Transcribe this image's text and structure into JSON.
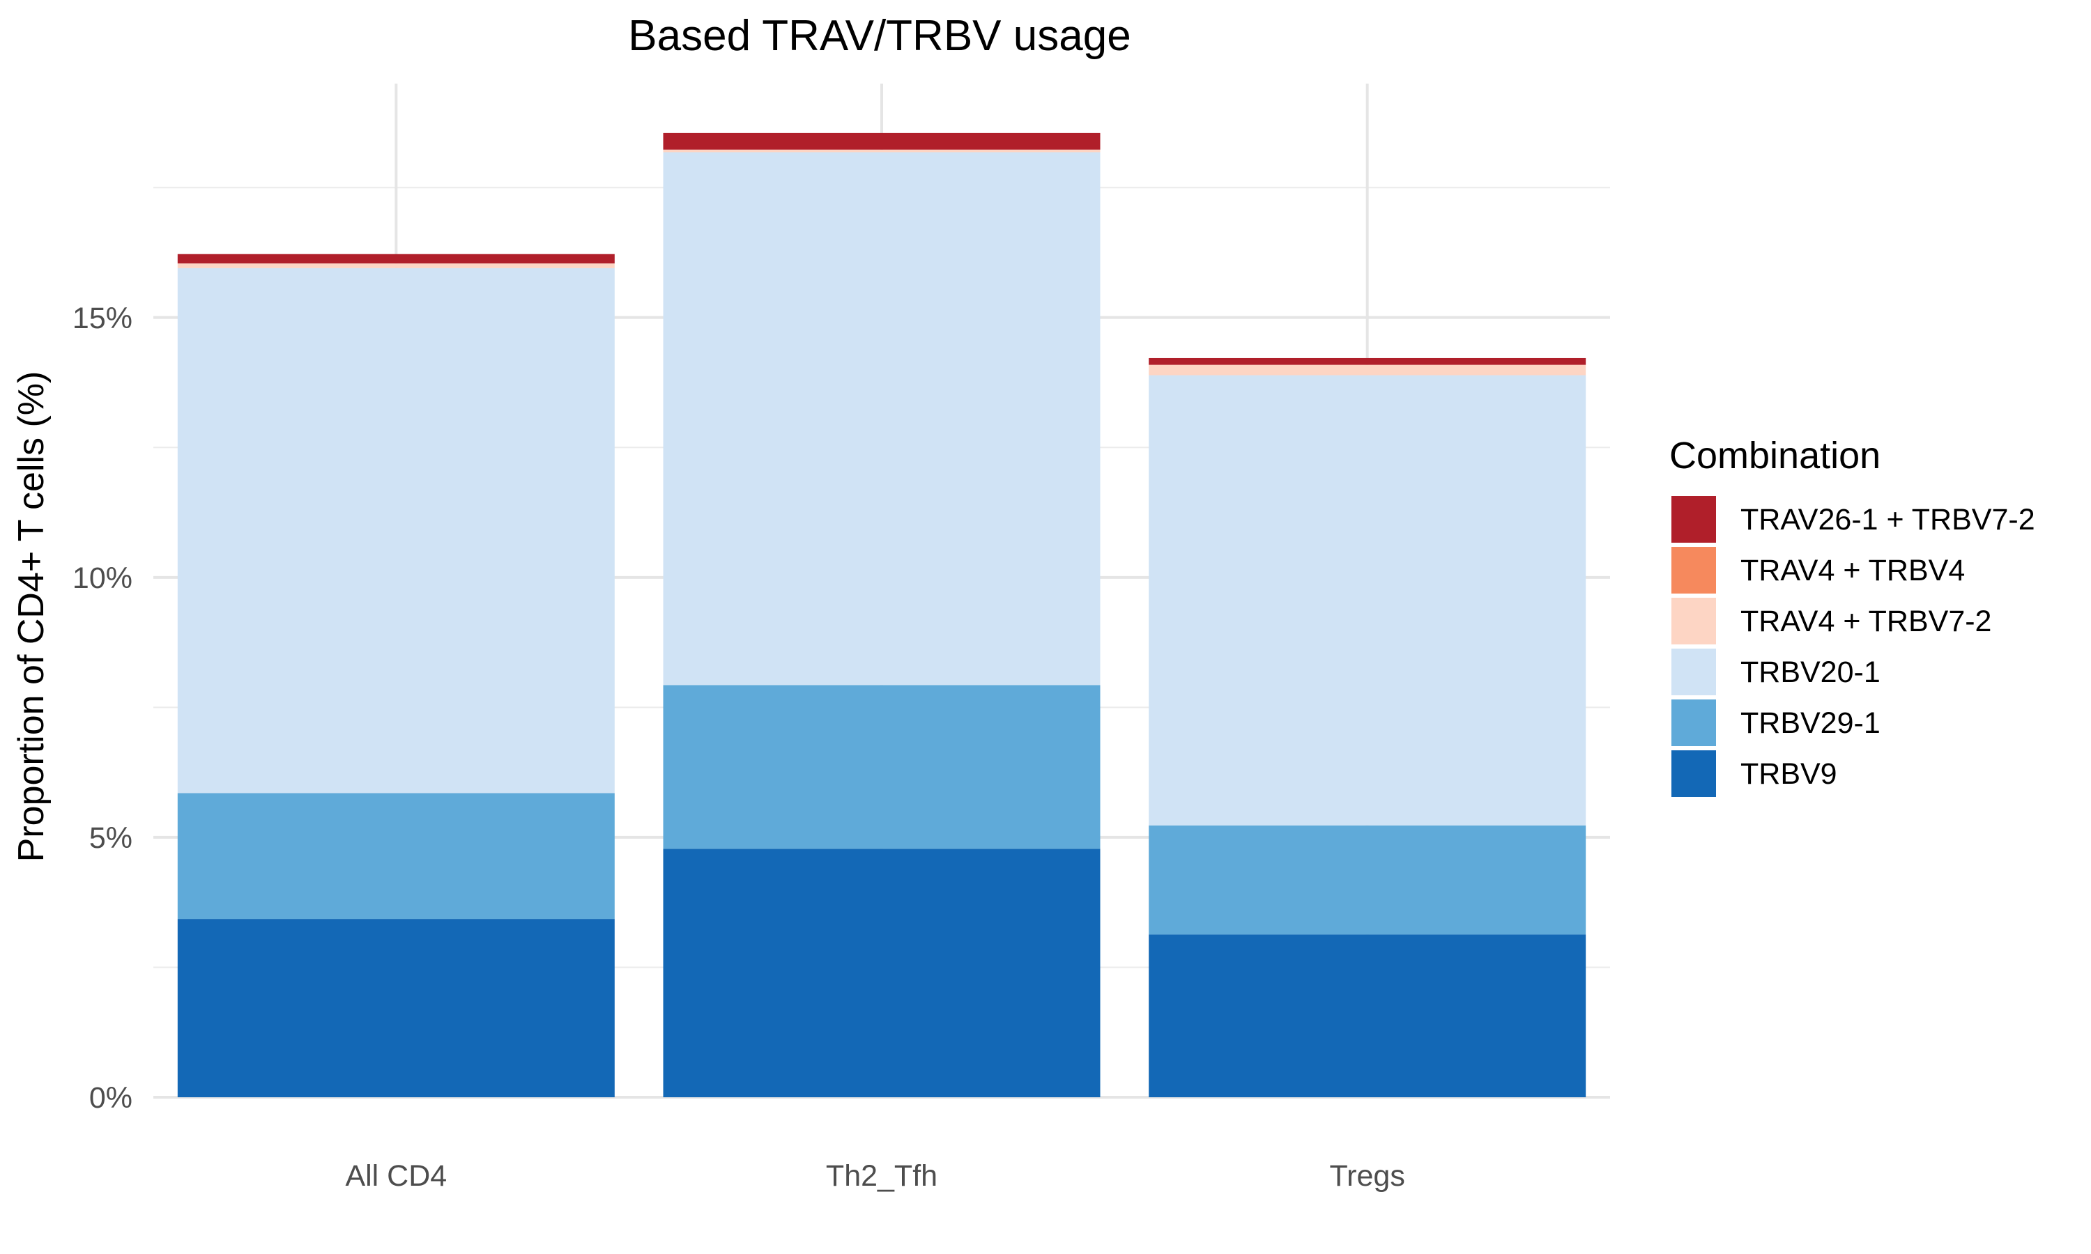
{
  "chart_data": {
    "type": "bar",
    "stacked": true,
    "title": "Based TRAV/TRBV usage",
    "xlabel": "",
    "ylabel": "Proportion of CD4+ T cells (%)",
    "ylim": [
      0,
      19.5
    ],
    "yticks": [
      0,
      5,
      10,
      15
    ],
    "ytick_labels": [
      "0%",
      "5%",
      "10%",
      "15%"
    ],
    "grid": true,
    "legend_title": "Combination",
    "legend_position": "right",
    "categories": [
      "All CD4",
      "Th2_Tfh",
      "Tregs"
    ],
    "series": [
      {
        "name": "TRBV9",
        "color": "#1368b6",
        "values": [
          3.43,
          4.78,
          3.13
        ]
      },
      {
        "name": "TRBV29-1",
        "color": "#5faad9",
        "values": [
          2.42,
          3.15,
          2.1
        ]
      },
      {
        "name": "TRBV20-1",
        "color": "#d0e3f5",
        "values": [
          10.1,
          10.25,
          8.66
        ]
      },
      {
        "name": "TRAV4 + TRBV7-2",
        "color": "#fdd5c4",
        "values": [
          0.09,
          0.05,
          0.2
        ]
      },
      {
        "name": "TRAV4 + TRBV4",
        "color": "#f6895d",
        "values": [
          0.0,
          0.0,
          0.0
        ]
      },
      {
        "name": "TRAV26-1 + TRBV7-2",
        "color": "#b01f2a",
        "values": [
          0.18,
          0.32,
          0.13
        ]
      }
    ],
    "legend_order": [
      "TRAV26-1 + TRBV7-2",
      "TRAV4 + TRBV4",
      "TRAV4 + TRBV7-2",
      "TRBV20-1",
      "TRBV29-1",
      "TRBV9"
    ]
  }
}
